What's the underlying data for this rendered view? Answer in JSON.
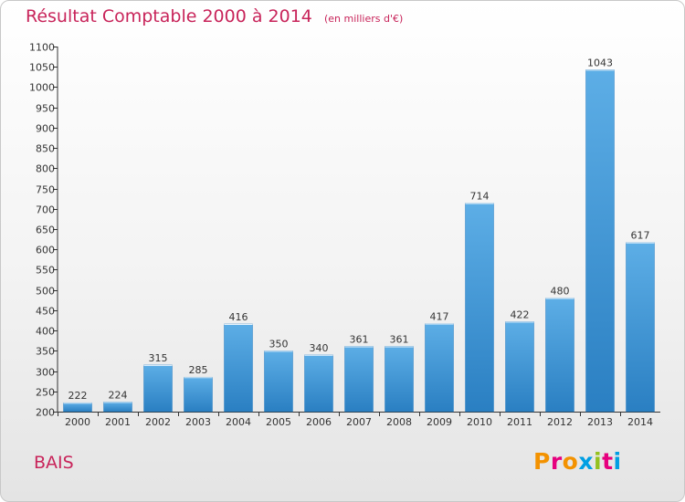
{
  "title": "Résultat Comptable 2000 à 2014",
  "unit_note": "(en milliers d'€)",
  "commune": "BAIS",
  "logo": {
    "text": "Proxiti",
    "colors": [
      "#f39200",
      "#e6007e",
      "#f39200",
      "#009fe3",
      "#95c11f",
      "#e6007e",
      "#009fe3"
    ]
  },
  "colors": {
    "bar_top": "#5daee6",
    "bar_bottom": "#2a7fc2",
    "title": "#c8245a"
  },
  "chart_data": {
    "type": "bar",
    "title": "Résultat Comptable 2000 à 2014",
    "xlabel": "",
    "ylabel": "",
    "categories": [
      "2000",
      "2001",
      "2002",
      "2003",
      "2004",
      "2005",
      "2006",
      "2007",
      "2008",
      "2009",
      "2010",
      "2011",
      "2012",
      "2013",
      "2014"
    ],
    "values": [
      222,
      224,
      315,
      285,
      416,
      350,
      340,
      361,
      361,
      417,
      714,
      422,
      480,
      1043,
      617
    ],
    "ylim": [
      200,
      1100
    ],
    "yticks": [
      200,
      250,
      300,
      350,
      400,
      450,
      500,
      550,
      600,
      650,
      700,
      750,
      800,
      850,
      900,
      950,
      1000,
      1050,
      1100
    ],
    "grid": false,
    "legend": "none"
  }
}
